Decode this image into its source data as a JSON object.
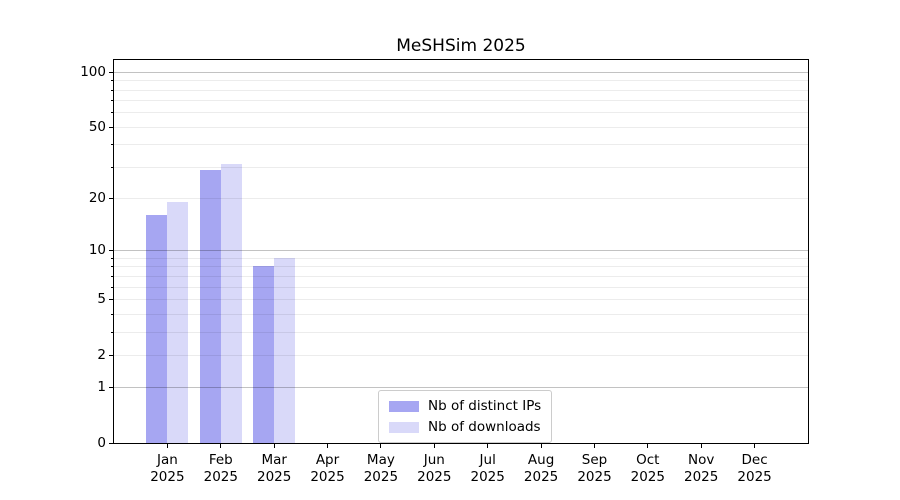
{
  "title": "MeSHSim 2025",
  "chart_data": {
    "type": "bar",
    "title": "MeSHSim 2025",
    "y_scale": "log1p",
    "ylim": [
      0,
      116
    ],
    "grid": "horizontal",
    "legend_position": "lower center",
    "categories": [
      "Jan",
      "Feb",
      "Mar",
      "Apr",
      "May",
      "Jun",
      "Jul",
      "Aug",
      "Sep",
      "Oct",
      "Nov",
      "Dec"
    ],
    "x_year": "2025",
    "series": [
      {
        "name": "Nb of distinct IPs",
        "color": "#a6a6f2",
        "values": [
          16,
          29,
          8,
          null,
          null,
          null,
          null,
          null,
          null,
          null,
          null,
          null
        ]
      },
      {
        "name": "Nb of downloads",
        "color": "#d9d9f9",
        "values": [
          19,
          31,
          9,
          null,
          null,
          null,
          null,
          null,
          null,
          null,
          null,
          null
        ]
      }
    ],
    "y_tick_labels": [
      "0",
      "1",
      "2",
      "5",
      "10",
      "20",
      "50",
      "100"
    ],
    "y_tick_values": [
      0,
      1,
      2,
      5,
      10,
      20,
      50,
      100
    ],
    "y_major_values": [
      1,
      10,
      100
    ],
    "y_minor_values": [
      2,
      3,
      4,
      5,
      6,
      7,
      8,
      9,
      20,
      30,
      40,
      50,
      60,
      70,
      80,
      90
    ],
    "axis_color": "#000000",
    "grid_color_major": "rgba(0,0,0,0.24)",
    "grid_color_minor": "rgba(0,0,0,0.075)"
  }
}
